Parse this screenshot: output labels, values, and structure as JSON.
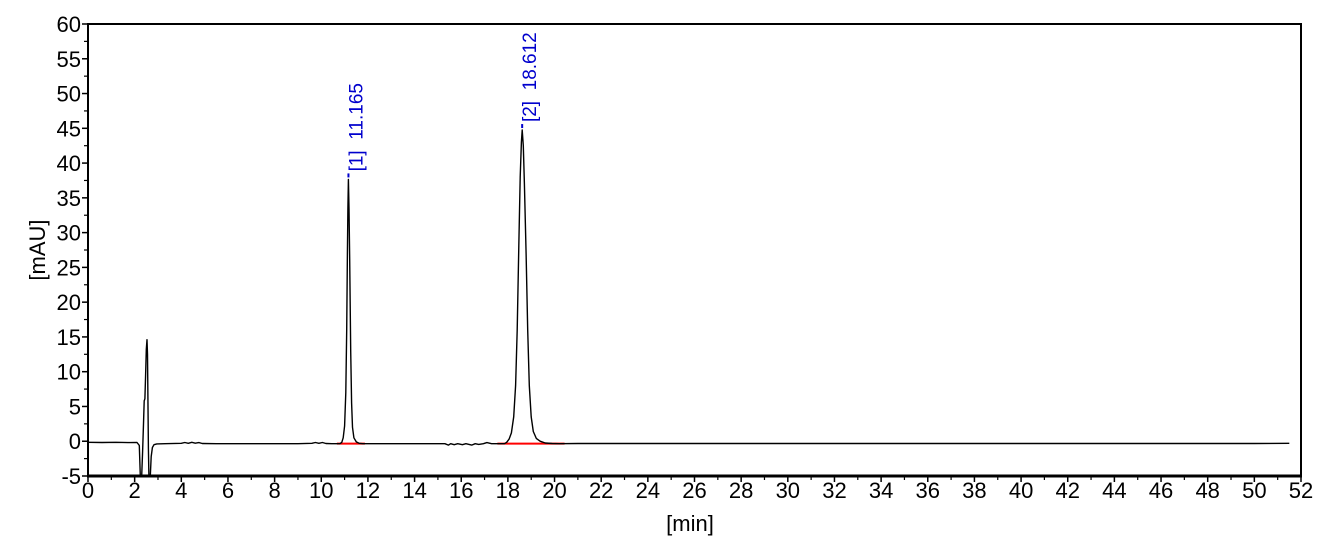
{
  "chart_data": {
    "type": "line",
    "chart_kind": "hplc-chromatogram",
    "title": "",
    "xlabel": "[min]",
    "ylabel": "[mAU]",
    "xlim": [
      0,
      52
    ],
    "ylim": [
      -5,
      60
    ],
    "grid": false,
    "legend": false,
    "x_major_ticks": [
      0,
      2,
      4,
      6,
      8,
      10,
      12,
      14,
      16,
      18,
      20,
      22,
      24,
      26,
      28,
      30,
      32,
      34,
      36,
      38,
      40,
      42,
      44,
      46,
      48,
      50,
      52
    ],
    "x_minor_ticks": [
      1,
      3,
      5,
      7,
      9,
      11,
      13,
      15,
      17,
      19,
      21,
      23,
      25,
      27,
      29,
      31,
      33,
      35,
      37,
      39,
      41,
      43,
      45,
      47,
      49,
      51
    ],
    "y_major_ticks": [
      -5,
      0,
      5,
      10,
      15,
      20,
      25,
      30,
      35,
      40,
      45,
      50,
      55,
      60
    ],
    "y_minor_ticks": [
      -2.5,
      2.5,
      7.5,
      12.5,
      17.5,
      22.5,
      27.5,
      32.5,
      37.5,
      42.5,
      47.5,
      52.5,
      57.5
    ],
    "colors": {
      "trace": "#000000",
      "axis": "#000000",
      "peak_label": "#0000CD",
      "integration_baseline": "#FF0000",
      "background": "#FFFFFF"
    },
    "peaks": [
      {
        "number": 1,
        "retention_time_min": 11.165,
        "apex_mau": 37.65,
        "label": "[1]  11.165"
      },
      {
        "number": 2,
        "retention_time_min": 18.612,
        "apex_mau": 44.75,
        "label": "[2]  18.612"
      }
    ],
    "integration_baselines": [
      {
        "x1": 10.67,
        "x2": 11.87,
        "level_mau": -0.35
      },
      {
        "x1": 17.55,
        "x2": 20.43,
        "level_mau": -0.35
      }
    ],
    "trace_points": [
      [
        0,
        -0.15
      ],
      [
        0.6,
        -0.18
      ],
      [
        1.2,
        -0.15
      ],
      [
        1.8,
        -0.2
      ],
      [
        2.1,
        -0.18
      ],
      [
        2.2,
        -0.6
      ],
      [
        2.24,
        -5.2
      ],
      [
        2.3,
        -5.2
      ],
      [
        2.34,
        -1.5
      ],
      [
        2.38,
        2.5
      ],
      [
        2.41,
        5.8
      ],
      [
        2.44,
        6.1
      ],
      [
        2.47,
        9.5
      ],
      [
        2.5,
        13.2
      ],
      [
        2.53,
        14.6
      ],
      [
        2.55,
        12.5
      ],
      [
        2.57,
        5
      ],
      [
        2.59,
        -1
      ],
      [
        2.61,
        -5.2
      ],
      [
        2.67,
        -5.2
      ],
      [
        2.71,
        -2.2
      ],
      [
        2.76,
        -0.9
      ],
      [
        2.83,
        -0.5
      ],
      [
        2.95,
        -0.38
      ],
      [
        3.3,
        -0.35
      ],
      [
        4,
        -0.3
      ],
      [
        4.15,
        -0.18
      ],
      [
        4.3,
        -0.3
      ],
      [
        4.45,
        -0.15
      ],
      [
        4.6,
        -0.28
      ],
      [
        4.75,
        -0.2
      ],
      [
        4.9,
        -0.32
      ],
      [
        5.5,
        -0.35
      ],
      [
        7,
        -0.35
      ],
      [
        9,
        -0.35
      ],
      [
        9.6,
        -0.3
      ],
      [
        9.75,
        -0.18
      ],
      [
        9.9,
        -0.3
      ],
      [
        10.05,
        -0.18
      ],
      [
        10.2,
        -0.32
      ],
      [
        10.45,
        -0.35
      ],
      [
        10.8,
        -0.35
      ],
      [
        10.88,
        -0.15
      ],
      [
        10.94,
        0.5
      ],
      [
        11,
        2.2
      ],
      [
        11.05,
        7
      ],
      [
        11.09,
        16
      ],
      [
        11.12,
        27
      ],
      [
        11.14,
        33.5
      ],
      [
        11.165,
        37.65
      ],
      [
        11.19,
        33.5
      ],
      [
        11.22,
        26
      ],
      [
        11.26,
        13
      ],
      [
        11.3,
        5.5
      ],
      [
        11.34,
        2
      ],
      [
        11.4,
        0.5
      ],
      [
        11.5,
        -0.1
      ],
      [
        11.62,
        -0.3
      ],
      [
        11.78,
        -0.35
      ],
      [
        12.5,
        -0.35
      ],
      [
        14,
        -0.35
      ],
      [
        15.3,
        -0.35
      ],
      [
        15.45,
        -0.55
      ],
      [
        15.55,
        -0.35
      ],
      [
        15.7,
        -0.5
      ],
      [
        15.85,
        -0.35
      ],
      [
        16.05,
        -0.5
      ],
      [
        16.2,
        -0.35
      ],
      [
        16.45,
        -0.55
      ],
      [
        16.6,
        -0.35
      ],
      [
        16.75,
        -0.45
      ],
      [
        16.95,
        -0.35
      ],
      [
        17.1,
        -0.2
      ],
      [
        17.3,
        -0.35
      ],
      [
        17.85,
        -0.35
      ],
      [
        17.95,
        -0.15
      ],
      [
        18.05,
        0.3
      ],
      [
        18.15,
        1.2
      ],
      [
        18.25,
        3.5
      ],
      [
        18.33,
        8
      ],
      [
        18.4,
        16
      ],
      [
        18.47,
        28
      ],
      [
        18.53,
        38
      ],
      [
        18.58,
        43
      ],
      [
        18.612,
        44.75
      ],
      [
        18.66,
        42.5
      ],
      [
        18.71,
        37
      ],
      [
        18.78,
        27
      ],
      [
        18.85,
        16
      ],
      [
        18.92,
        8
      ],
      [
        19,
        3.5
      ],
      [
        19.09,
        1.4
      ],
      [
        19.22,
        0.4
      ],
      [
        19.38,
        0
      ],
      [
        19.6,
        -0.25
      ],
      [
        19.9,
        -0.32
      ],
      [
        20.2,
        -0.35
      ],
      [
        21,
        -0.32
      ],
      [
        25,
        -0.32
      ],
      [
        30,
        -0.32
      ],
      [
        35,
        -0.32
      ],
      [
        40,
        -0.32
      ],
      [
        45,
        -0.32
      ],
      [
        50,
        -0.32
      ],
      [
        51.5,
        -0.3
      ]
    ]
  }
}
